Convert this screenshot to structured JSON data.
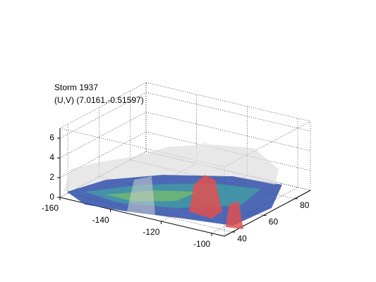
{
  "chart_data": {
    "type": "surface3d",
    "title": [
      "Storm 1937",
      "(U,V) (7.0161,-0.51597)"
    ],
    "xlim": [
      -160,
      -95
    ],
    "xticks": [
      -160,
      -140,
      -120,
      -100
    ],
    "ylim": [
      35,
      90
    ],
    "yticks": [
      40,
      60,
      80
    ],
    "zlim": [
      0,
      7
    ],
    "zticks": [
      0,
      2,
      4,
      6
    ],
    "grid": true
  }
}
